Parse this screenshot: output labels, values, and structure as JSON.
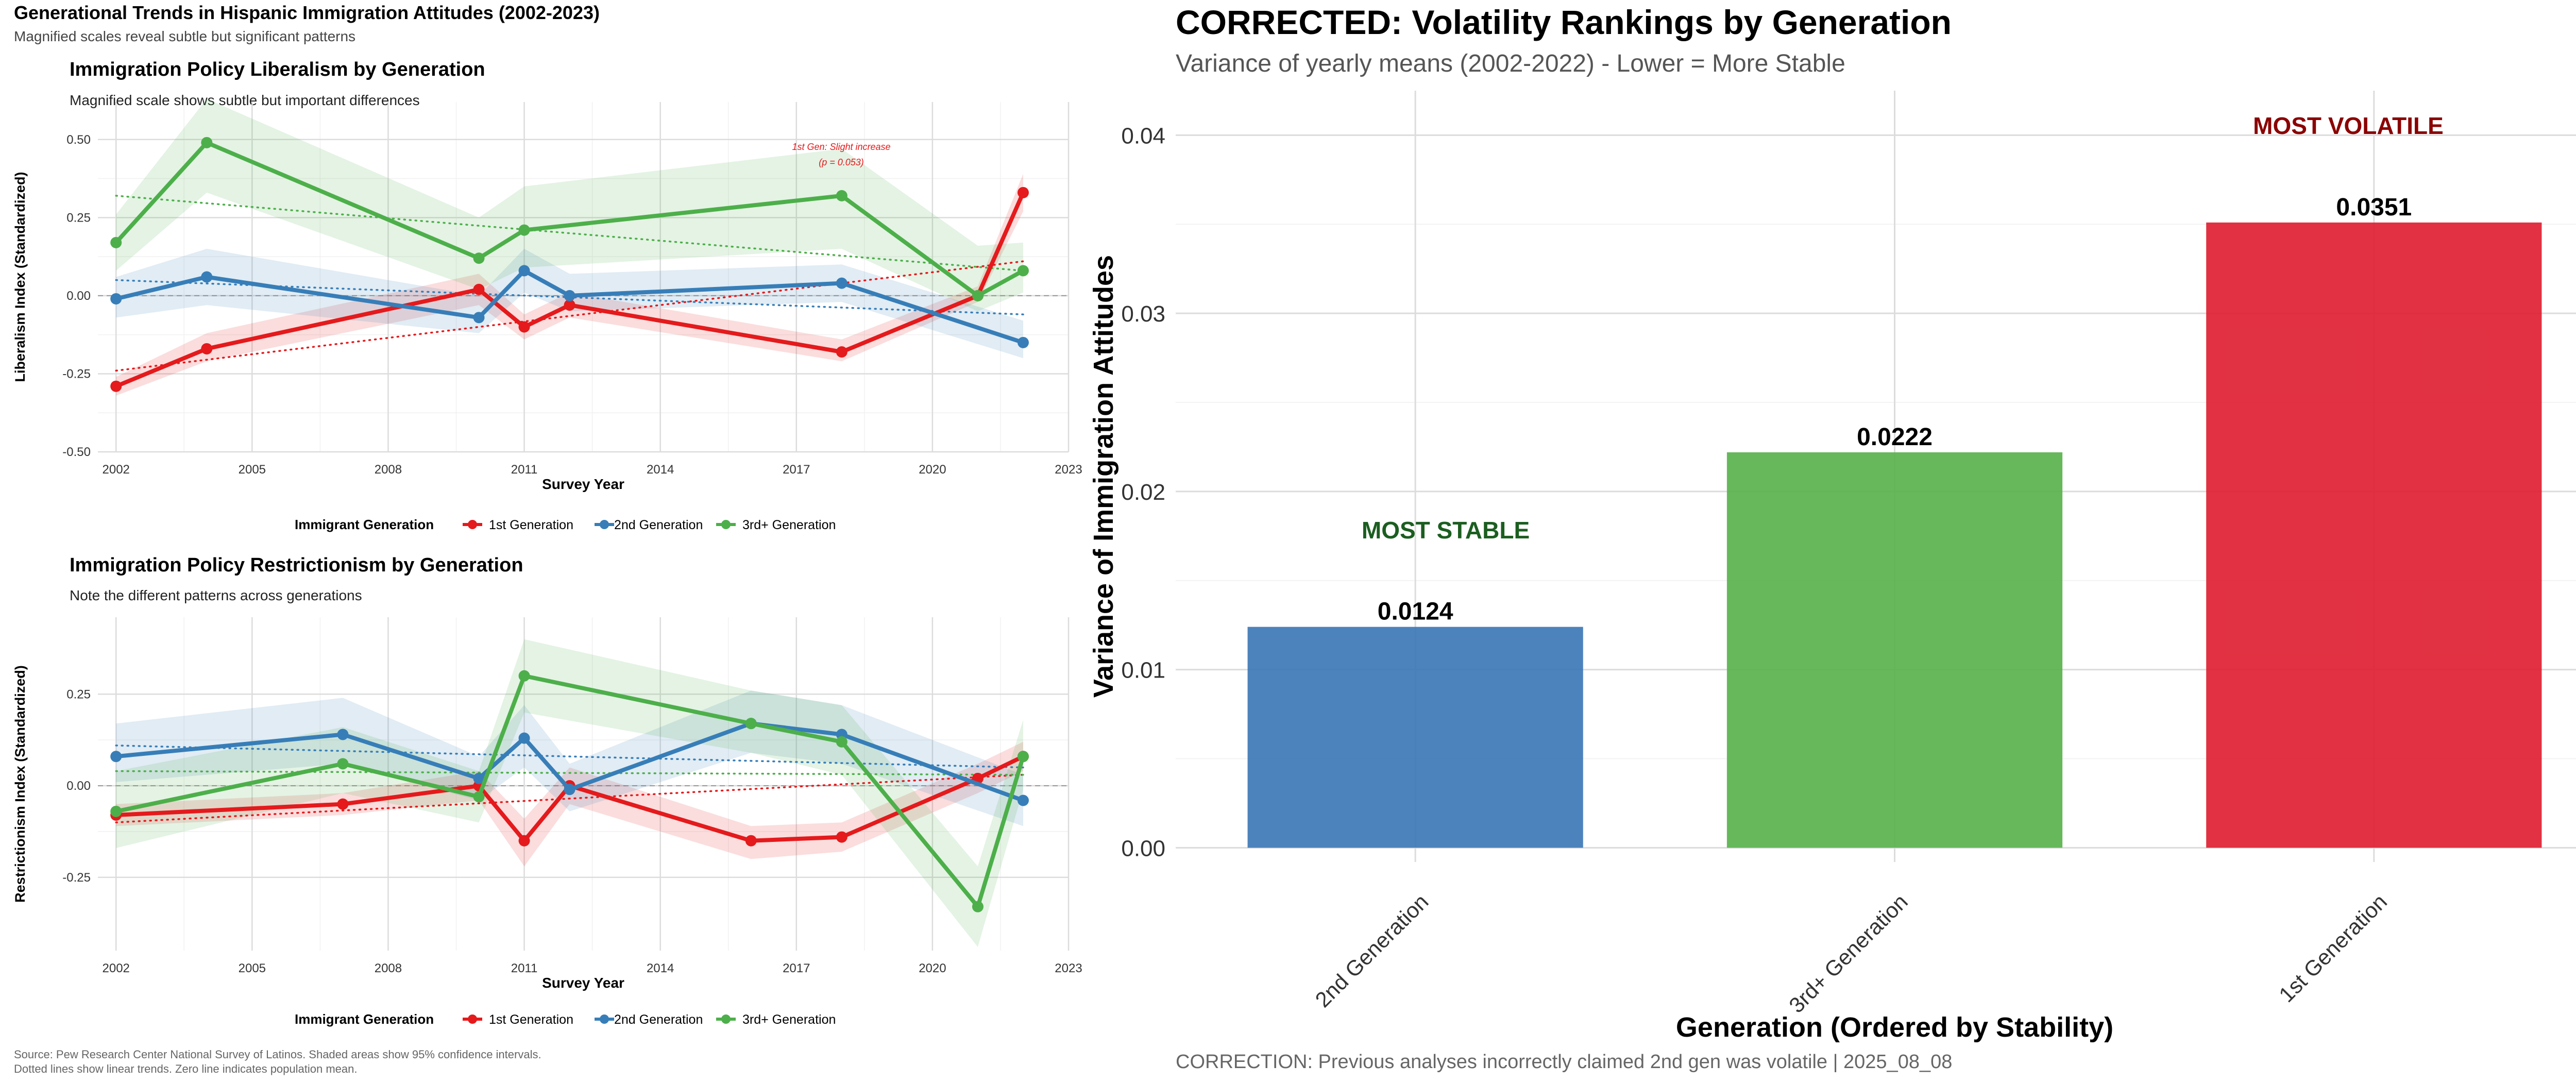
{
  "left_header": {
    "title": "Generational Trends in Hispanic Immigration Attitudes (2002-2023)",
    "subtitle": "Magnified scales reveal subtle but significant patterns"
  },
  "panel_liberalism": {
    "title": "Immigration Policy Liberalism by Generation",
    "subtitle": "Magnified scale shows subtle but important differences",
    "annotation_line1": "1st Gen: Slight increase",
    "annotation_line2": "(p = 0.053)"
  },
  "panel_restrictionism": {
    "title": "Immigration Policy Restrictionism by Generation",
    "subtitle": "Note the different patterns across generations"
  },
  "legend": {
    "title": "Immigrant Generation",
    "items": [
      "1st Generation",
      "2nd Generation",
      "3rd+ Generation"
    ]
  },
  "source_note": {
    "line1": "Source: Pew Research Center National Survey of Latinos. Shaded areas show 95% confidence intervals.",
    "line2": "Dotted lines show linear trends. Zero line indicates population mean."
  },
  "right_header": {
    "title": "CORRECTED: Volatility Rankings by Generation",
    "subtitle": "Variance of yearly means (2002-2022) - Lower = More Stable",
    "caption": "CORRECTION: Previous analyses incorrectly claimed 2nd gen was volatile | 2025_08_08",
    "label_most_stable": "MOST STABLE",
    "label_most_volatile": "MOST VOLATILE"
  },
  "colors": {
    "gen1": "#E41A1C",
    "gen2": "#377EB8",
    "gen3": "#4DAF4A",
    "stable_text": "#1B5E20",
    "volatile_text": "#8B0000"
  },
  "chart_data": [
    {
      "type": "line",
      "id": "liberalism",
      "title": "Immigration Policy Liberalism by Generation",
      "xlabel": "Survey Year",
      "ylabel": "Liberalism Index (Standardized)",
      "xlim": [
        2001.6,
        2023
      ],
      "ylim": [
        -0.5,
        0.62
      ],
      "xticks": [
        2002,
        2005,
        2008,
        2011,
        2014,
        2017,
        2020,
        2023
      ],
      "yticks": [
        -0.5,
        -0.25,
        0,
        0.25,
        0.5
      ],
      "ytick_labels": [
        "-0.50",
        "-0.25",
        "0.00",
        "0.25",
        "0.50"
      ],
      "grid": true,
      "legend": "bottom",
      "series": [
        {
          "name": "1st Generation",
          "color": "#E41A1C",
          "x": [
            2002,
            2004,
            2010,
            2011,
            2012,
            2018,
            2021,
            2022
          ],
          "y": [
            -0.29,
            -0.17,
            0.02,
            -0.1,
            -0.03,
            -0.18,
            0.0,
            0.33
          ],
          "ci_low": [
            -0.32,
            -0.21,
            -0.03,
            -0.14,
            -0.07,
            -0.21,
            -0.02,
            0.27
          ],
          "ci_high": [
            -0.26,
            -0.12,
            0.07,
            -0.06,
            0.01,
            -0.14,
            0.03,
            0.39
          ],
          "trend": [
            [
              2002,
              -0.24
            ],
            [
              2022,
              0.11
            ]
          ]
        },
        {
          "name": "2nd Generation",
          "color": "#377EB8",
          "x": [
            2002,
            2004,
            2010,
            2011,
            2012,
            2018,
            2022
          ],
          "y": [
            -0.01,
            0.06,
            -0.07,
            0.08,
            0.0,
            0.04,
            -0.15
          ],
          "ci_low": [
            -0.07,
            -0.03,
            -0.12,
            0.01,
            -0.05,
            -0.02,
            -0.2
          ],
          "ci_high": [
            0.06,
            0.15,
            0.0,
            0.15,
            0.07,
            0.1,
            -0.08
          ],
          "trend": [
            [
              2002,
              0.05
            ],
            [
              2022,
              -0.06
            ]
          ]
        },
        {
          "name": "3rd+ Generation",
          "color": "#4DAF4A",
          "x": [
            2002,
            2004,
            2010,
            2011,
            2018,
            2021,
            2022
          ],
          "y": [
            0.17,
            0.49,
            0.12,
            0.21,
            0.32,
            0.0,
            0.08
          ],
          "ci_low": [
            0.08,
            0.33,
            0.02,
            0.09,
            0.15,
            -0.05,
            0.01
          ],
          "ci_high": [
            0.26,
            0.63,
            0.25,
            0.35,
            0.47,
            0.16,
            0.17
          ],
          "trend": [
            [
              2002,
              0.32
            ],
            [
              2022,
              0.08
            ]
          ]
        }
      ]
    },
    {
      "type": "line",
      "id": "restrictionism",
      "title": "Immigration Policy Restrictionism by Generation",
      "xlabel": "Survey Year",
      "ylabel": "Restrictionism Index (Standardized)",
      "xlim": [
        2001.6,
        2023
      ],
      "ylim": [
        -0.45,
        0.46
      ],
      "xticks": [
        2002,
        2005,
        2008,
        2011,
        2014,
        2017,
        2020,
        2023
      ],
      "yticks": [
        -0.25,
        0,
        0.25
      ],
      "ytick_labels": [
        "-0.25",
        "0.00",
        "0.25"
      ],
      "grid": true,
      "legend": "bottom",
      "series": [
        {
          "name": "1st Generation",
          "color": "#E41A1C",
          "x": [
            2002,
            2007,
            2010,
            2011,
            2012,
            2016,
            2018,
            2021,
            2022
          ],
          "y": [
            -0.08,
            -0.05,
            0.0,
            -0.15,
            0.0,
            -0.15,
            -0.14,
            0.02,
            0.08
          ],
          "ci_low": [
            -0.11,
            -0.08,
            -0.04,
            -0.22,
            -0.05,
            -0.2,
            -0.18,
            -0.02,
            0.04
          ],
          "ci_high": [
            -0.05,
            -0.02,
            0.04,
            -0.09,
            0.05,
            -0.11,
            -0.1,
            0.06,
            0.12
          ],
          "trend": [
            [
              2002,
              -0.1
            ],
            [
              2022,
              0.03
            ]
          ]
        },
        {
          "name": "2nd Generation",
          "color": "#377EB8",
          "x": [
            2002,
            2007,
            2010,
            2011,
            2012,
            2016,
            2018,
            2022
          ],
          "y": [
            0.08,
            0.14,
            0.02,
            0.13,
            -0.01,
            0.17,
            0.14,
            -0.04
          ],
          "ci_low": [
            0.01,
            0.06,
            -0.04,
            0.05,
            -0.07,
            0.09,
            0.06,
            -0.11
          ],
          "ci_high": [
            0.17,
            0.24,
            0.08,
            0.22,
            0.06,
            0.26,
            0.22,
            0.03
          ],
          "trend": [
            [
              2002,
              0.11
            ],
            [
              2022,
              0.05
            ]
          ]
        },
        {
          "name": "3rd+ Generation",
          "color": "#4DAF4A",
          "x": [
            2002,
            2007,
            2010,
            2011,
            2016,
            2018,
            2021,
            2022
          ],
          "y": [
            -0.07,
            0.06,
            -0.03,
            0.3,
            0.17,
            0.12,
            -0.33,
            0.08
          ],
          "ci_low": [
            -0.17,
            -0.02,
            -0.1,
            0.2,
            0.09,
            0.03,
            -0.44,
            -0.01
          ],
          "ci_high": [
            0.04,
            0.16,
            0.04,
            0.4,
            0.26,
            0.22,
            -0.22,
            0.18
          ],
          "trend": [
            [
              2002,
              0.04
            ],
            [
              2022,
              0.03
            ]
          ]
        }
      ]
    },
    {
      "type": "bar",
      "id": "volatility",
      "title": "CORRECTED: Volatility Rankings by Generation",
      "subtitle": "Variance of yearly means (2002-2022) - Lower = More Stable",
      "xlabel": "Generation (Ordered by Stability)",
      "ylabel": "Variance of Immigration Attitudes",
      "categories": [
        "2nd Generation",
        "3rd+ Generation",
        "1st Generation"
      ],
      "values": [
        0.0124,
        0.0222,
        0.0351
      ],
      "value_labels": [
        "0.0124",
        "0.0222",
        "0.0351"
      ],
      "colors": [
        "#3A75B5",
        "#55B048",
        "#DE1B2E"
      ],
      "ylim": [
        -0.0008,
        0.0425
      ],
      "yticks": [
        0,
        0.01,
        0.02,
        0.03,
        0.04
      ],
      "ytick_labels": [
        "0.00",
        "0.01",
        "0.02",
        "0.03",
        "0.04"
      ],
      "grid": true
    }
  ]
}
